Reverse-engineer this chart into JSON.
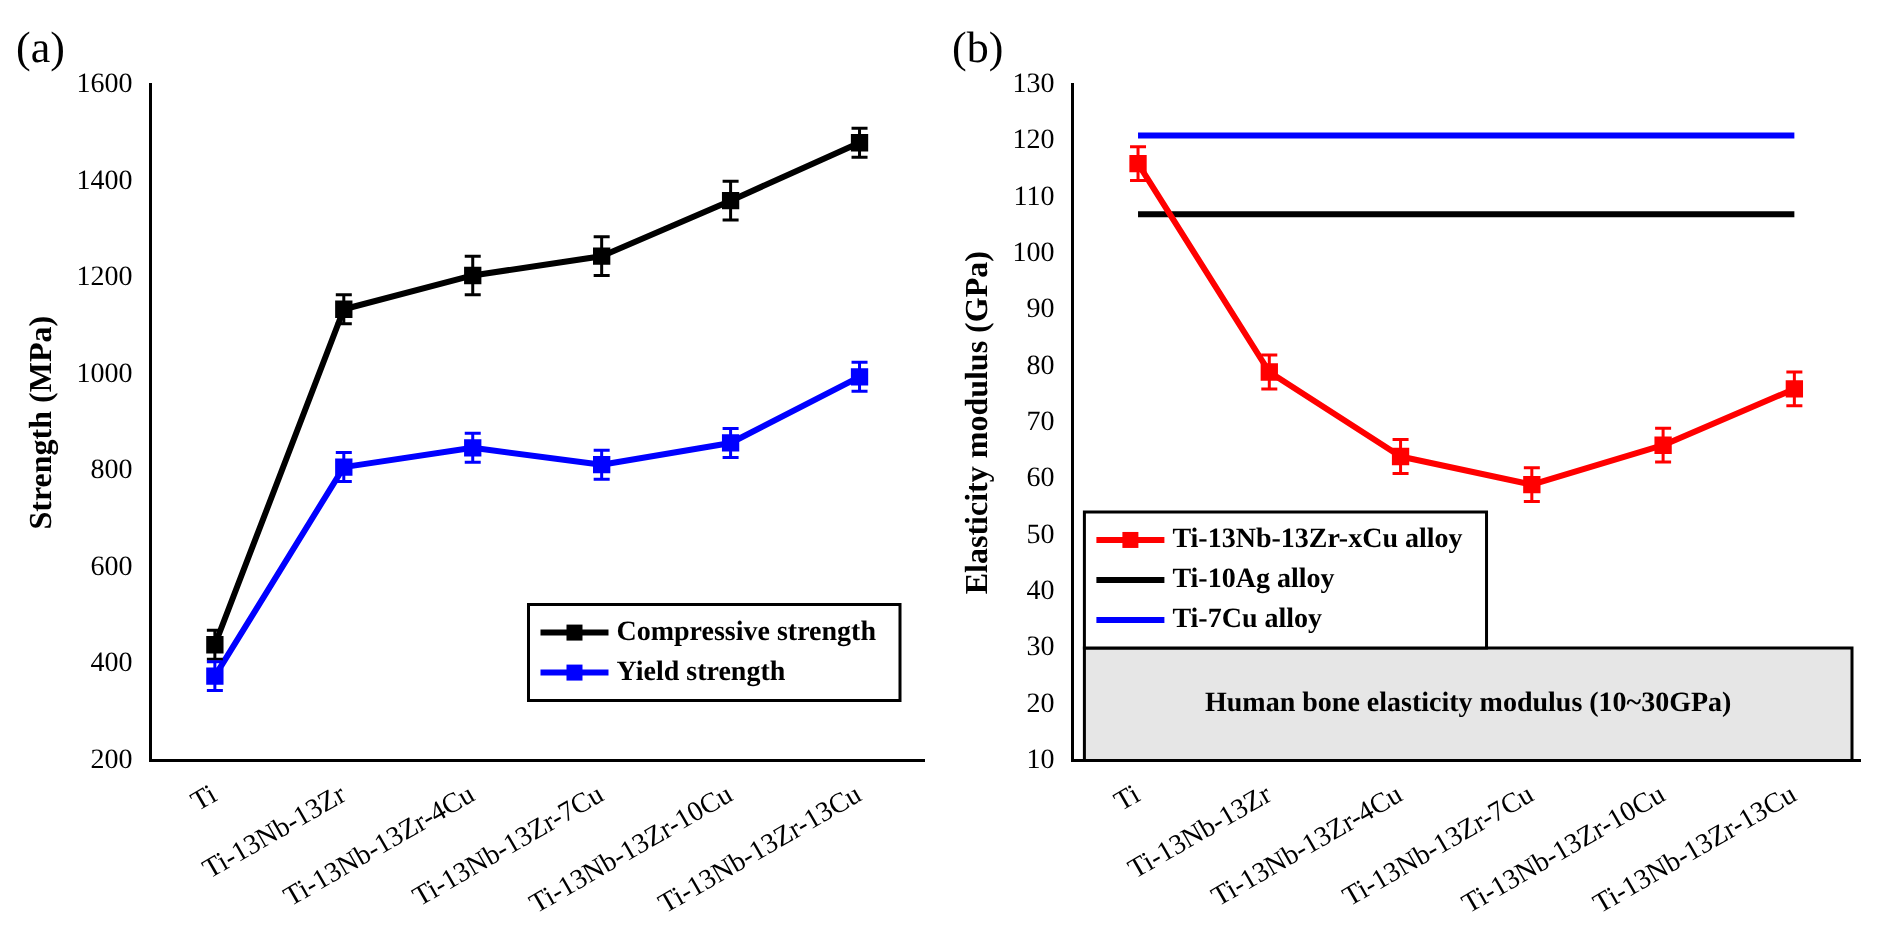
{
  "chart_data": [
    {
      "type": "line",
      "title": "(a)",
      "ylabel": "Strength (MPa)",
      "categories": [
        "Ti",
        "Ti-13Nb-13Zr",
        "Ti-13Nb-13Zr-4Cu",
        "Ti-13Nb-13Zr-7Cu",
        "Ti-13Nb-13Zr-10Cu",
        "Ti-13Nb-13Zr-13Cu"
      ],
      "series": [
        {
          "name": "Compressive strength",
          "color": "#000000",
          "values": [
            440,
            1135,
            1205,
            1245,
            1360,
            1480
          ],
          "errors": [
            30,
            30,
            40,
            40,
            40,
            30
          ]
        },
        {
          "name": "Yield strength",
          "color": "#0000ff",
          "values": [
            375,
            808,
            848,
            813,
            858,
            995
          ],
          "errors": [
            30,
            30,
            30,
            30,
            30,
            30
          ]
        }
      ],
      "ylim": [
        200,
        1600
      ],
      "yticks": [
        200,
        400,
        600,
        800,
        1000,
        1200,
        1400,
        1600
      ],
      "grid": false,
      "legend": "bottom right",
      "marker": "square"
    },
    {
      "type": "line",
      "title": "(b)",
      "ylabel": "Elasticity modulus (GPa)",
      "categories": [
        "Ti",
        "Ti-13Nb-13Zr",
        "Ti-13Nb-13Zr-4Cu",
        "Ti-13Nb-13Zr-7Cu",
        "Ti-13Nb-13Zr-10Cu",
        "Ti-13Nb-13Zr-13Cu"
      ],
      "series": [
        {
          "name": "Ti-13Nb-13Zr-xCu alloy",
          "color": "#ff0000",
          "values": [
            116,
            79,
            64,
            59,
            66,
            76
          ],
          "errors": [
            3,
            3,
            3,
            3,
            3,
            3
          ],
          "marker": "square"
        },
        {
          "name": "Ti-10Ag alloy",
          "color": "#000000",
          "values": [
            107,
            107,
            107,
            107,
            107,
            107
          ],
          "marker": "none"
        },
        {
          "name": "Ti-7Cu alloy",
          "color": "#0000ff",
          "values": [
            121,
            121,
            121,
            121,
            121,
            121
          ],
          "marker": "none"
        }
      ],
      "bands": [
        {
          "axis": "y",
          "from": 10,
          "to": 30,
          "label": "Human bone elasticity modulus (10~30GPa)",
          "color": "#e6e6e6"
        }
      ],
      "ylim": [
        10,
        130
      ],
      "yticks": [
        10,
        20,
        30,
        40,
        50,
        60,
        70,
        80,
        90,
        100,
        110,
        120,
        130
      ],
      "grid": false,
      "legend": "bottom left"
    }
  ]
}
